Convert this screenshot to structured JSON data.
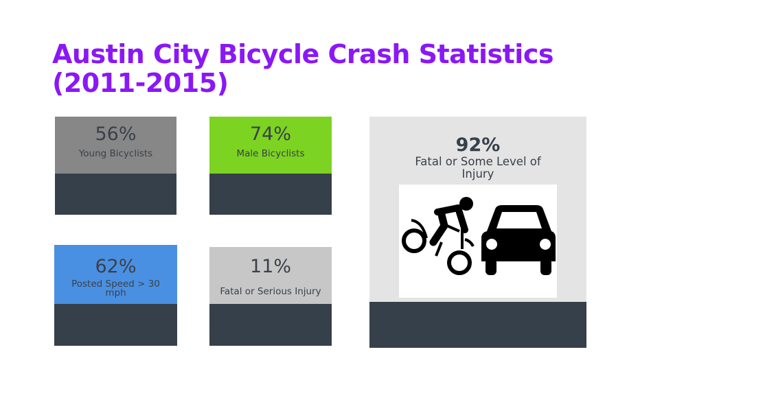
{
  "title": "Austin City Bicycle Crash Statistics (2011-2015)",
  "cards": [
    {
      "percent": "56%",
      "label": "Young Bicyclists",
      "color": "#878787"
    },
    {
      "percent": "74%",
      "label": "Male Bicyclists",
      "color": "#7cd321"
    },
    {
      "percent": "62%",
      "label": "Posted Speed > 30 mph",
      "color": "#4a90e2"
    },
    {
      "percent": "11%",
      "label": "Fatal or Serious Injury",
      "color": "#c7c7c7"
    }
  ],
  "feature_card": {
    "percent": "92%",
    "label": "Fatal or Some Level of Injury",
    "icon": "bicycle-car-crash-icon",
    "color": "#e4e4e4"
  },
  "colors": {
    "title": "#8a18f5",
    "footer": "#36404a"
  }
}
